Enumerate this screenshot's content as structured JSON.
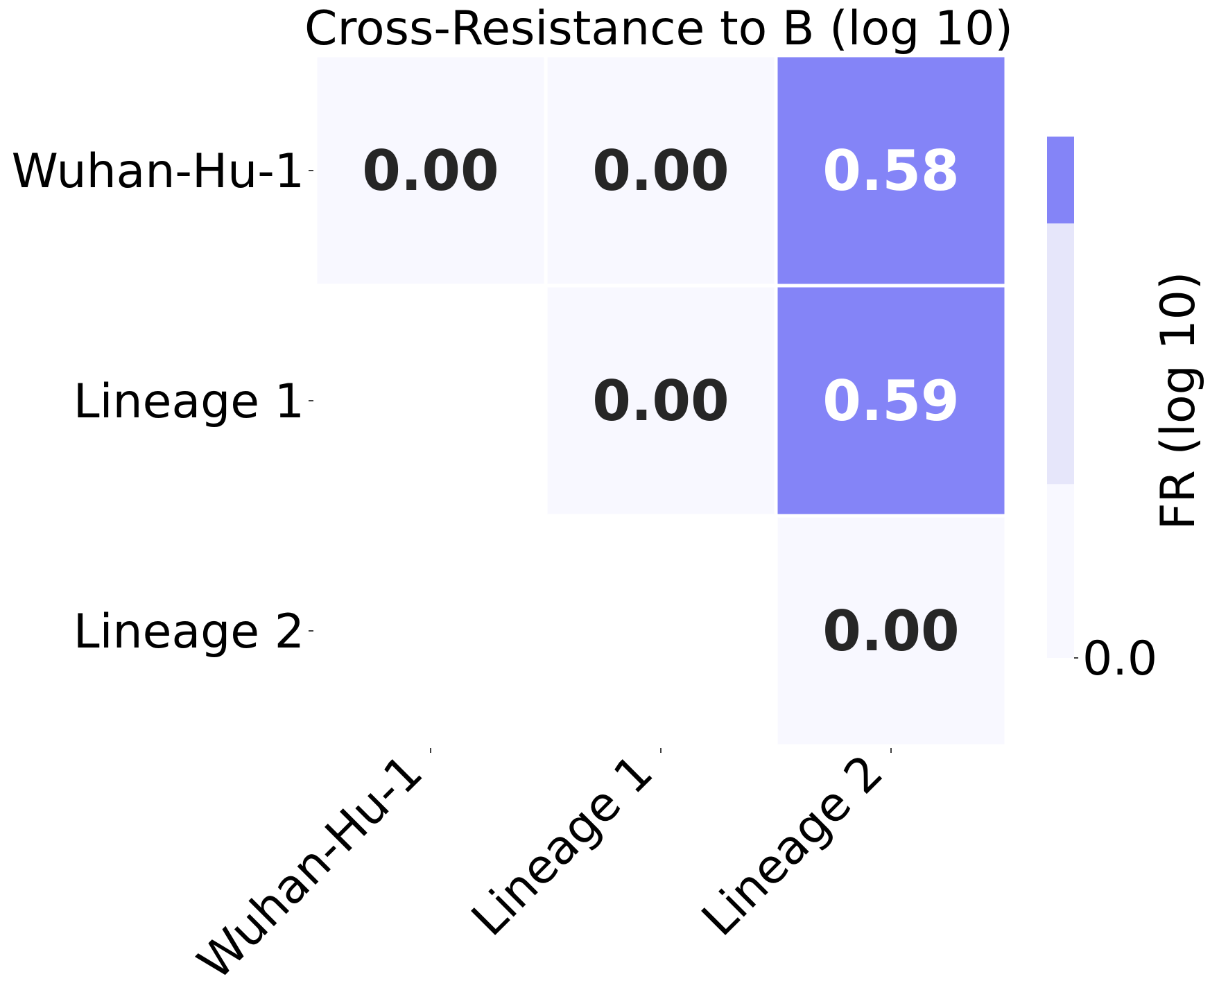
{
  "chart_data": {
    "type": "heatmap",
    "title": "Cross-Resistance to B (log 10)",
    "rows": [
      "Wuhan-Hu-1",
      "Lineage 1",
      "Lineage 2"
    ],
    "columns": [
      "Wuhan-Hu-1",
      "Lineage 1",
      "Lineage 2"
    ],
    "values": [
      [
        0.0,
        0.0,
        0.58
      ],
      [
        null,
        0.0,
        0.59
      ],
      [
        null,
        null,
        0.0
      ]
    ],
    "value_labels": [
      [
        "0.00",
        "0.00",
        "0.58"
      ],
      [
        "",
        "0.00",
        "0.59"
      ],
      [
        "",
        "",
        "0.00"
      ]
    ],
    "masked": "lower triangle",
    "colorbar": {
      "label": "FR (log 10)",
      "tick_labels": [
        "0.0"
      ],
      "bands": [
        {
          "from": 0.0,
          "to": 0.2,
          "color": "#F8F8FF"
        },
        {
          "from": 0.2,
          "to": 0.5,
          "color": "#E6E6FA"
        },
        {
          "from": 0.5,
          "to": 0.6,
          "color": "#8484F7"
        }
      ],
      "range": [
        0.0,
        0.6
      ]
    },
    "colors": {
      "low": "#F8F8FF",
      "high": "#8484F7",
      "text_dark": "#262626",
      "text_light": "#FFFFFF"
    },
    "grid": false
  }
}
